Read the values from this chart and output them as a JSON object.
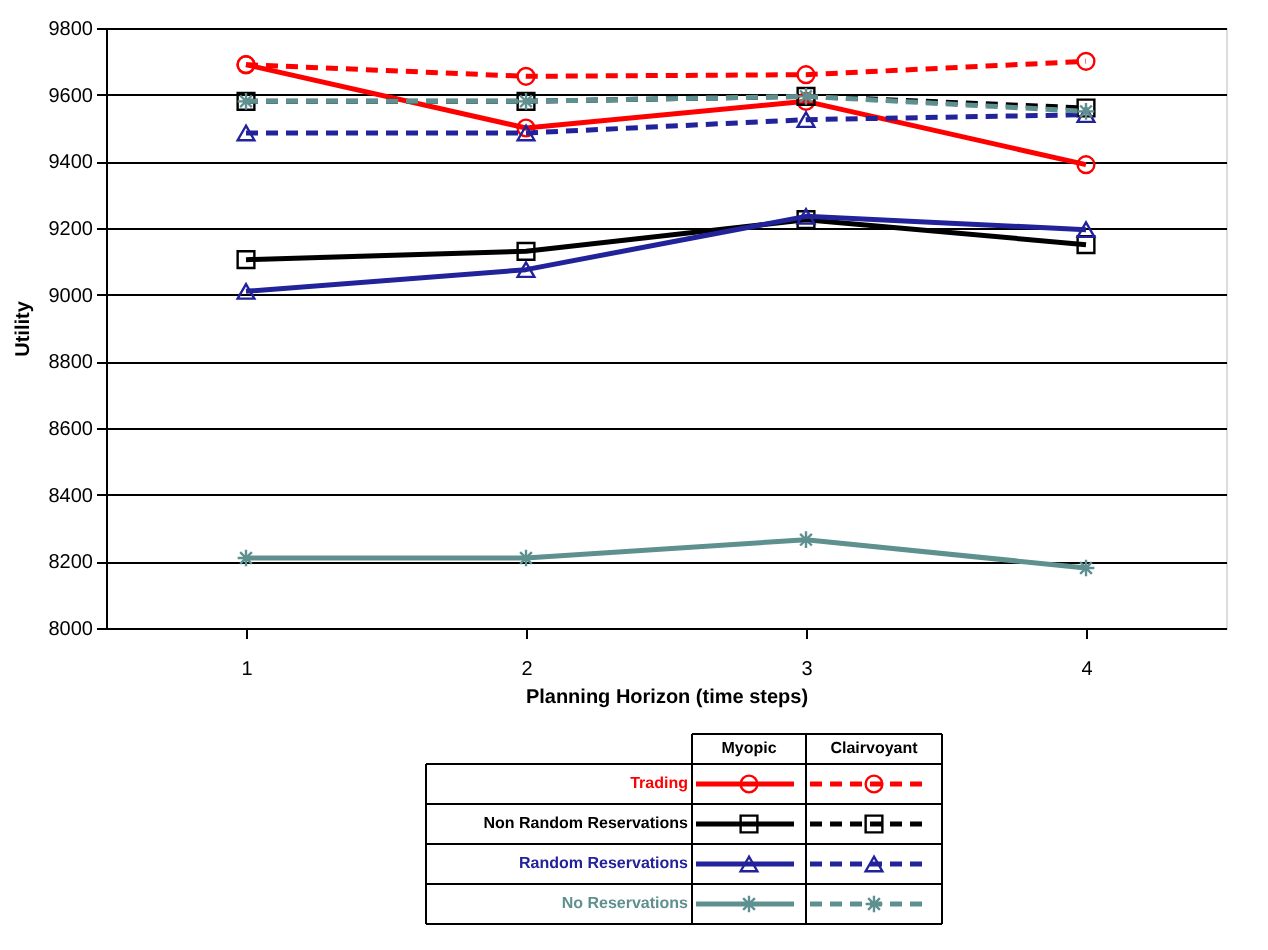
{
  "chart_data": {
    "type": "line",
    "xlabel": "Planning Horizon (time steps)",
    "ylabel": "Utility",
    "categories": [
      "1",
      "2",
      "3",
      "4"
    ],
    "ylim": [
      8000,
      9800
    ],
    "yticks": [
      8000,
      8200,
      8400,
      8600,
      8800,
      9000,
      9200,
      9400,
      9600,
      9800
    ],
    "grid": "y",
    "legend": "bottom",
    "annotations": [
      "Myopic",
      "Clairvoyant"
    ],
    "series": [
      {
        "name": "Trading",
        "color": "#ff0000",
        "line_style": "solid",
        "marker": "circle",
        "values": [
          9690,
          9500,
          9580,
          9390
        ]
      },
      {
        "color": "#ff0000",
        "line_style": "dashed",
        "marker": "circle",
        "values": [
          9690,
          9655,
          9660,
          9700
        ]
      },
      {
        "name": "Non Random Reservations",
        "color": "#000000",
        "line_style": "solid",
        "marker": "square",
        "values": [
          9105,
          9130,
          9225,
          9150
        ]
      },
      {
        "color": "#000000",
        "line_style": "dashed",
        "marker": "square",
        "values": [
          9580,
          9580,
          9595,
          9560
        ]
      },
      {
        "name": "Random Reservations",
        "color": "#22229a",
        "line_style": "solid",
        "marker": "triangle",
        "values": [
          9010,
          9075,
          9235,
          9195
        ]
      },
      {
        "color": "#22229a",
        "line_style": "dashed",
        "marker": "triangle",
        "values": [
          9485,
          9485,
          9525,
          9540
        ]
      },
      {
        "name": "No Reservations",
        "color": "#5f9090",
        "line_style": "solid",
        "marker": "cross",
        "values": [
          8210,
          8210,
          8265,
          8180
        ]
      },
      {
        "color": "#5f9090",
        "line_style": "dashed",
        "marker": "cross",
        "values": [
          9580,
          9580,
          9595,
          9550
        ]
      }
    ]
  }
}
